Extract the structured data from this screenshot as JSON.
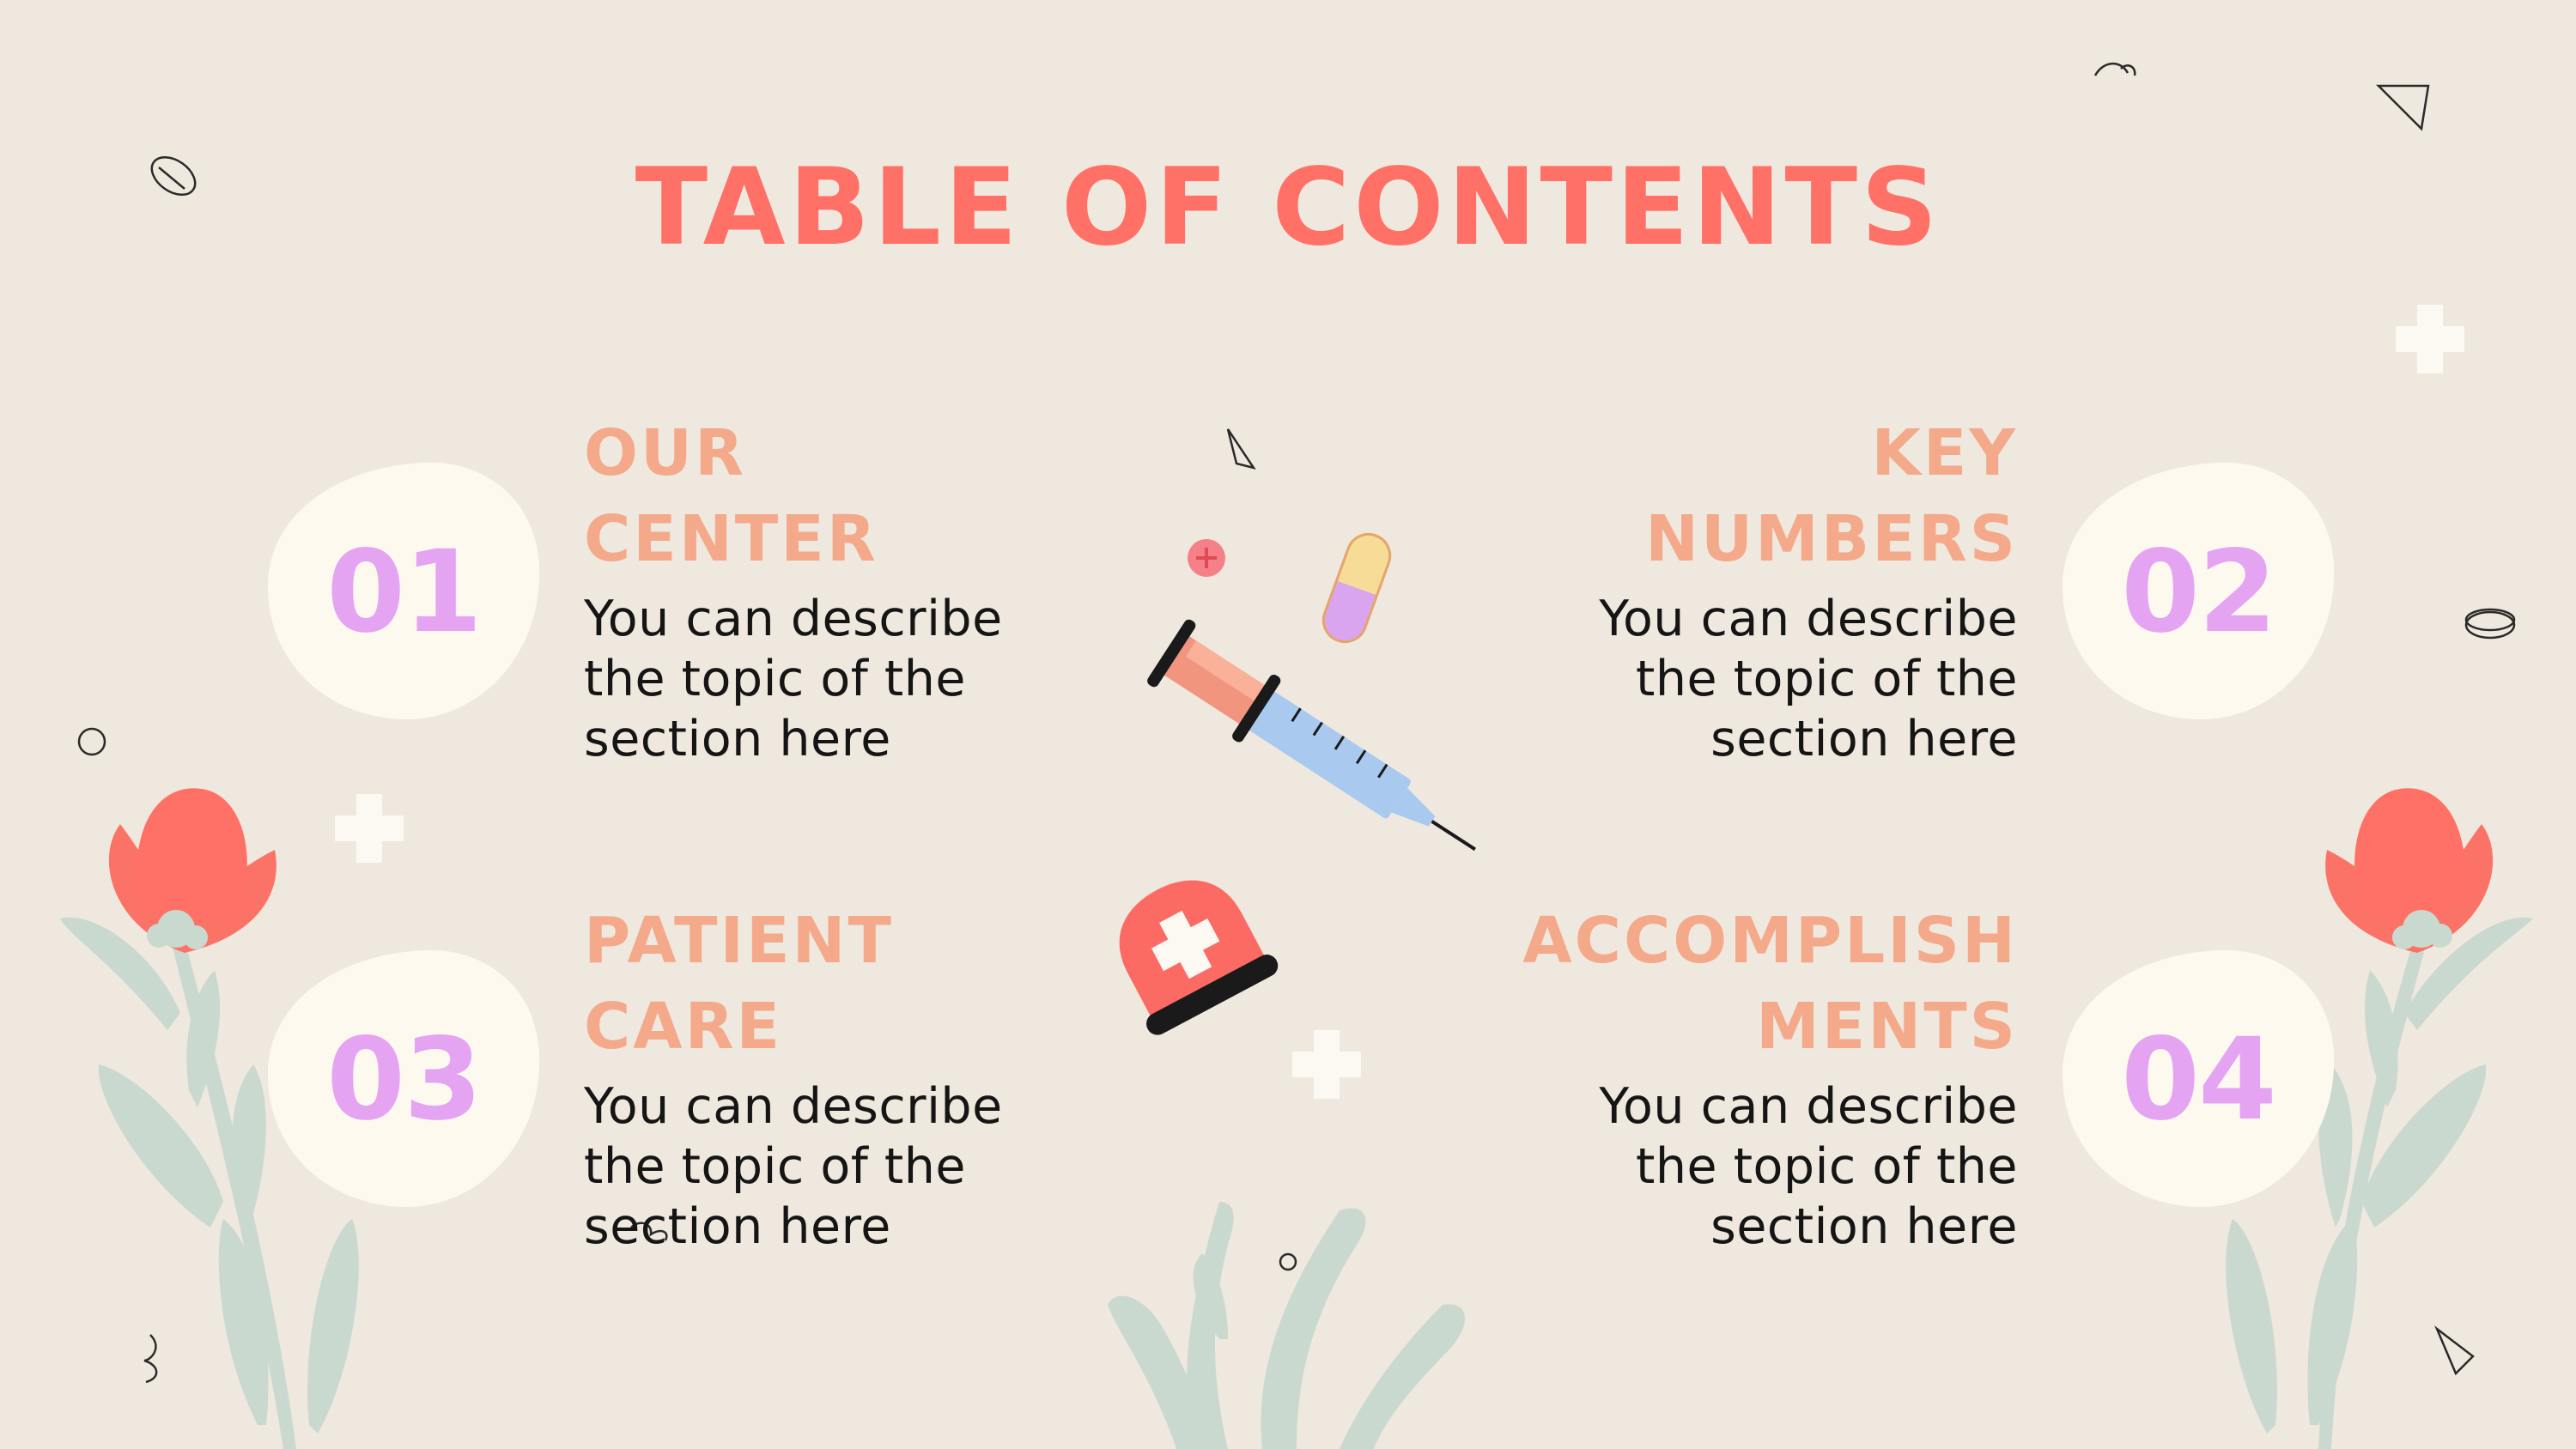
{
  "title": "TABLE OF CONTENTS",
  "sections": [
    {
      "number": "01",
      "heading": "OUR\nCENTER",
      "description": "You can describe\nthe topic of the\nsection here"
    },
    {
      "number": "02",
      "heading": "KEY\nNUMBERS",
      "description": "You can describe\nthe topic of the\nsection here"
    },
    {
      "number": "03",
      "heading": "PATIENT\nCARE",
      "description": "You can describe\nthe topic of the\nsection here"
    },
    {
      "number": "04",
      "heading": "ACCOMPLISH\nMENTS",
      "description": "You can describe\nthe topic of the\nsection here"
    }
  ],
  "colors": {
    "background": "#efe8de",
    "title": "#ff7066",
    "heading": "#f3a98a",
    "number": "#e5a4f2",
    "number_blob": "#fdf9ef",
    "leaf": "#cad9d0",
    "flower": "#fb7267"
  },
  "icons": [
    "syringe-icon",
    "pill-capsule-icon",
    "pill-tablet-icon",
    "medical-bag-icon",
    "flower-icon",
    "plus-icon",
    "triangle-icon",
    "circle-icon",
    "leaf-plant-icon"
  ]
}
